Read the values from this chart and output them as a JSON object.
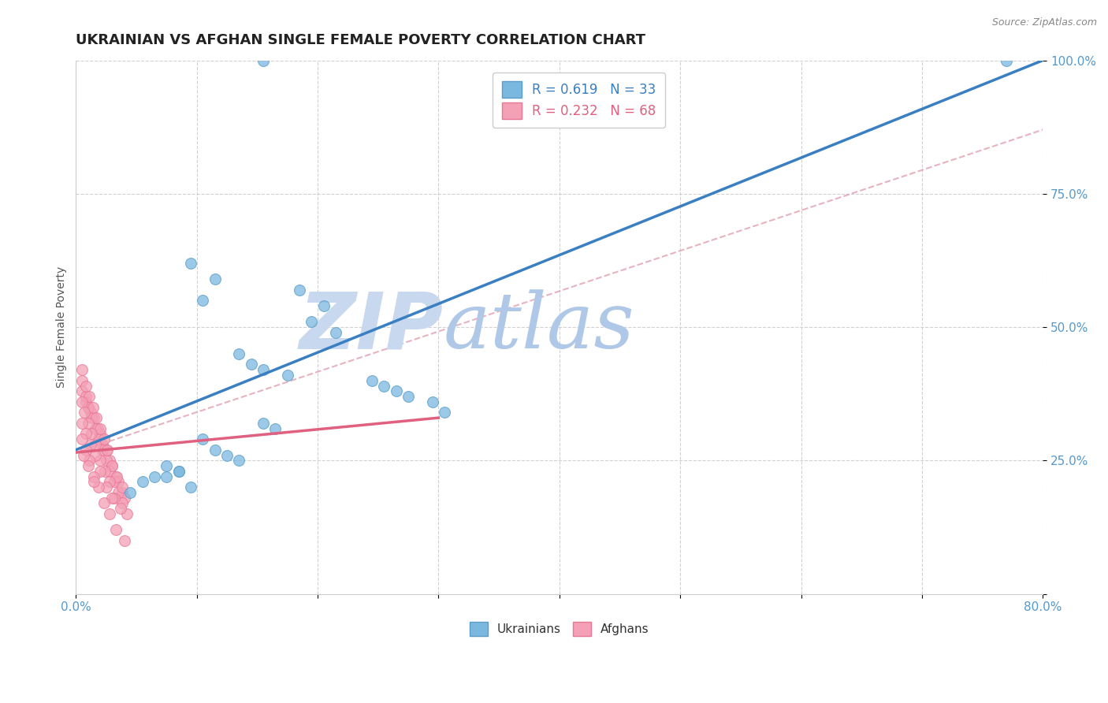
{
  "title": "UKRAINIAN VS AFGHAN SINGLE FEMALE POVERTY CORRELATION CHART",
  "source_text": "Source: ZipAtlas.com",
  "ylabel": "Single Female Poverty",
  "xlim": [
    0.0,
    0.8
  ],
  "ylim": [
    0.0,
    1.0
  ],
  "xticks": [
    0.0,
    0.1,
    0.2,
    0.3,
    0.4,
    0.5,
    0.6,
    0.7,
    0.8
  ],
  "xticklabels": [
    "0.0%",
    "",
    "",
    "",
    "",
    "",
    "",
    "",
    "80.0%"
  ],
  "yticks": [
    0.0,
    0.25,
    0.5,
    0.75,
    1.0
  ],
  "yticklabels": [
    "",
    "25.0%",
    "50.0%",
    "75.0%",
    "100.0%"
  ],
  "legend_r1": "R = 0.619",
  "legend_n1": "N = 33",
  "legend_r2": "R = 0.232",
  "legend_n2": "N = 68",
  "ukr_color": "#7bb8e0",
  "afg_color": "#f4a0b5",
  "ukr_edge_color": "#5a9dc8",
  "afg_edge_color": "#e87898",
  "ukr_line_color": "#3a7fc1",
  "afg_line_color": "#e06080",
  "diag_line_color": "#e0a0b0",
  "background_color": "#ffffff",
  "tick_color": "#5599cc",
  "watermark_zip_color": "#c8d8ee",
  "watermark_atlas_color": "#b0c8e8",
  "ukr_scatter_x": [
    0.155,
    0.77,
    0.095,
    0.115,
    0.105,
    0.185,
    0.205,
    0.195,
    0.215,
    0.135,
    0.145,
    0.155,
    0.175,
    0.245,
    0.255,
    0.265,
    0.275,
    0.295,
    0.305,
    0.155,
    0.165,
    0.105,
    0.115,
    0.125,
    0.135,
    0.075,
    0.085,
    0.065,
    0.055,
    0.095,
    0.045,
    0.075,
    0.085
  ],
  "ukr_scatter_y": [
    1.0,
    1.0,
    0.62,
    0.59,
    0.55,
    0.57,
    0.54,
    0.51,
    0.49,
    0.45,
    0.43,
    0.42,
    0.41,
    0.4,
    0.39,
    0.38,
    0.37,
    0.36,
    0.34,
    0.32,
    0.31,
    0.29,
    0.27,
    0.26,
    0.25,
    0.24,
    0.23,
    0.22,
    0.21,
    0.2,
    0.19,
    0.22,
    0.23
  ],
  "afg_scatter_x": [
    0.005,
    0.008,
    0.01,
    0.012,
    0.015,
    0.018,
    0.02,
    0.022,
    0.025,
    0.028,
    0.03,
    0.033,
    0.035,
    0.038,
    0.04,
    0.005,
    0.008,
    0.01,
    0.013,
    0.016,
    0.019,
    0.022,
    0.025,
    0.028,
    0.032,
    0.035,
    0.038,
    0.042,
    0.005,
    0.008,
    0.011,
    0.014,
    0.017,
    0.02,
    0.023,
    0.026,
    0.03,
    0.034,
    0.038,
    0.005,
    0.007,
    0.01,
    0.013,
    0.016,
    0.02,
    0.024,
    0.028,
    0.032,
    0.037,
    0.005,
    0.008,
    0.012,
    0.016,
    0.02,
    0.025,
    0.03,
    0.005,
    0.008,
    0.011,
    0.015,
    0.019,
    0.023,
    0.028,
    0.033,
    0.04,
    0.006,
    0.01,
    0.015
  ],
  "afg_scatter_y": [
    0.38,
    0.36,
    0.35,
    0.34,
    0.33,
    0.31,
    0.3,
    0.28,
    0.27,
    0.25,
    0.24,
    0.22,
    0.21,
    0.19,
    0.18,
    0.4,
    0.37,
    0.35,
    0.33,
    0.31,
    0.29,
    0.27,
    0.25,
    0.23,
    0.21,
    0.19,
    0.17,
    0.15,
    0.42,
    0.39,
    0.37,
    0.35,
    0.33,
    0.31,
    0.29,
    0.27,
    0.24,
    0.22,
    0.2,
    0.36,
    0.34,
    0.32,
    0.3,
    0.28,
    0.25,
    0.23,
    0.21,
    0.18,
    0.16,
    0.32,
    0.3,
    0.28,
    0.26,
    0.23,
    0.2,
    0.18,
    0.29,
    0.27,
    0.25,
    0.22,
    0.2,
    0.17,
    0.15,
    0.12,
    0.1,
    0.26,
    0.24,
    0.21
  ],
  "ukr_line_x0": 0.0,
  "ukr_line_y0": 0.27,
  "ukr_line_x1": 0.8,
  "ukr_line_y1": 1.0,
  "afg_line_x0": 0.0,
  "afg_line_y0": 0.265,
  "afg_line_x1": 0.3,
  "afg_line_y1": 0.33,
  "diag_line_x0": 0.0,
  "diag_line_y0": 0.265,
  "diag_line_x1": 0.8,
  "diag_line_y1": 0.87,
  "title_fontsize": 13,
  "axis_label_fontsize": 10,
  "tick_fontsize": 11,
  "legend_fontsize": 12,
  "marker_size": 100
}
